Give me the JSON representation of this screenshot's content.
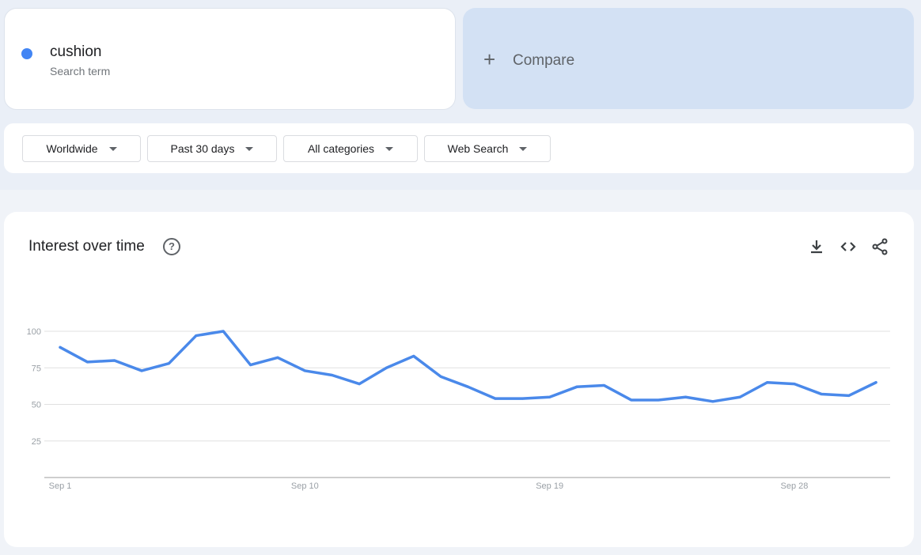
{
  "search_term": {
    "name": "cushion",
    "subtitle": "Search term",
    "color": "#4285f4"
  },
  "compare": {
    "icon": "plus-icon",
    "label": "Compare"
  },
  "filters": [
    {
      "label": "Worldwide"
    },
    {
      "label": "Past 30 days"
    },
    {
      "label": "All categories"
    },
    {
      "label": "Web Search"
    }
  ],
  "chart_section": {
    "title": "Interest over time",
    "icons": [
      "help-icon",
      "download-icon",
      "embed-code-icon",
      "share-icon"
    ]
  },
  "chart_data": {
    "type": "line",
    "title": "",
    "xlabel": "",
    "ylabel": "",
    "ylim": [
      0,
      100
    ],
    "yticks": [
      "25",
      "50",
      "75",
      "100"
    ],
    "grid": true,
    "xtick_labels": [
      {
        "label": "Sep 1",
        "index": 0
      },
      {
        "label": "Sep 10",
        "index": 9
      },
      {
        "label": "Sep 19",
        "index": 18
      },
      {
        "label": "Sep 28",
        "index": 27
      }
    ],
    "x": [
      "Sep 1",
      "Sep 2",
      "Sep 3",
      "Sep 4",
      "Sep 5",
      "Sep 6",
      "Sep 7",
      "Sep 8",
      "Sep 9",
      "Sep 10",
      "Sep 11",
      "Sep 12",
      "Sep 13",
      "Sep 14",
      "Sep 15",
      "Sep 16",
      "Sep 17",
      "Sep 18",
      "Sep 19",
      "Sep 20",
      "Sep 21",
      "Sep 22",
      "Sep 23",
      "Sep 24",
      "Sep 25",
      "Sep 26",
      "Sep 27",
      "Sep 28",
      "Sep 29",
      "Sep 30",
      "Oct 1"
    ],
    "series": [
      {
        "color": "#4a89ea",
        "values": [
          89,
          79,
          80,
          73,
          78,
          97,
          100,
          77,
          82,
          73,
          70,
          64,
          75,
          83,
          69,
          62,
          54,
          54,
          55,
          62,
          63,
          53,
          53,
          55,
          52,
          55,
          65,
          64,
          57,
          56,
          65
        ]
      }
    ]
  }
}
